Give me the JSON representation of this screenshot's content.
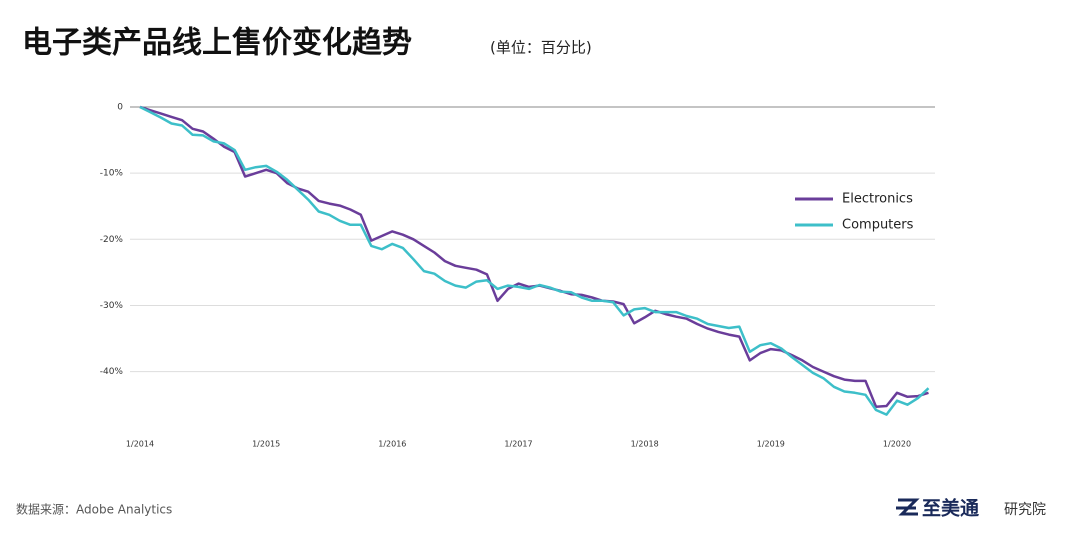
{
  "chart_data": {
    "type": "line",
    "title": "电子类产品线上售价变化趋势",
    "subtitle": "(单位：百分比)",
    "x": [
      "1/2014",
      "2/2014",
      "3/2014",
      "4/2014",
      "5/2014",
      "6/2014",
      "7/2014",
      "8/2014",
      "9/2014",
      "10/2014",
      "11/2014",
      "12/2014",
      "1/2015",
      "2/2015",
      "3/2015",
      "4/2015",
      "5/2015",
      "6/2015",
      "7/2015",
      "8/2015",
      "9/2015",
      "10/2015",
      "11/2015",
      "12/2015",
      "1/2016",
      "2/2016",
      "3/2016",
      "4/2016",
      "5/2016",
      "6/2016",
      "7/2016",
      "8/2016",
      "9/2016",
      "10/2016",
      "11/2016",
      "12/2016",
      "1/2017",
      "2/2017",
      "3/2017",
      "4/2017",
      "5/2017",
      "6/2017",
      "7/2017",
      "8/2017",
      "9/2017",
      "10/2017",
      "11/2017",
      "12/2017",
      "1/2018",
      "2/2018",
      "3/2018",
      "4/2018",
      "5/2018",
      "6/2018",
      "7/2018",
      "8/2018",
      "9/2018",
      "10/2018",
      "11/2018",
      "12/2018",
      "1/2019",
      "2/2019",
      "3/2019",
      "4/2019",
      "5/2019",
      "6/2019",
      "7/2019",
      "8/2019",
      "9/2019",
      "10/2019",
      "11/2019",
      "12/2019",
      "1/2020",
      "2/2020",
      "3/2020",
      "4/2020"
    ],
    "xticks": [
      "1/2014",
      "1/2015",
      "1/2016",
      "1/2017",
      "1/2018",
      "1/2019",
      "1/2020"
    ],
    "ylim": [
      -52,
      0
    ],
    "yticks": [
      0,
      {
        "value": -10,
        "label": "-10%"
      },
      {
        "value": -20,
        "label": "-20%"
      },
      {
        "value": -30,
        "label": "-30%"
      },
      {
        "value": -40,
        "label": "-40%"
      }
    ],
    "grid": true,
    "legend": "right",
    "series": [
      {
        "name": "Electronics",
        "color": "#6a3d9a",
        "values": [
          0,
          -0.5,
          -1,
          -1.5,
          -2,
          -3.3,
          -3.7,
          -4.8,
          -6,
          -6.8,
          -10.5,
          -10,
          -9.5,
          -10,
          -11.5,
          -12.3,
          -12.8,
          -14.2,
          -14.6,
          -14.9,
          -15.5,
          -16.3,
          -20.2,
          -19.5,
          -18.8,
          -19.3,
          -20,
          -21,
          -22,
          -23.3,
          -24,
          -24.3,
          -24.6,
          -25.3,
          -29.3,
          -27.5,
          -26.7,
          -27.2,
          -27,
          -27.4,
          -27.8,
          -28.3,
          -28.4,
          -28.8,
          -29.3,
          -29.4,
          -29.8,
          -32.7,
          -31.8,
          -30.8,
          -31.3,
          -31.7,
          -32,
          -32.8,
          -33.5,
          -34,
          -34.4,
          -34.7,
          -38.3,
          -37.2,
          -36.6,
          -36.8,
          -37.5,
          -38.3,
          -39.3,
          -40,
          -40.7,
          -41.2,
          -41.4,
          -41.4,
          -45.3,
          -45.2,
          -43.2,
          -43.8,
          -43.7,
          -43.2
        ]
      },
      {
        "name": "Computers",
        "color": "#3dbfc9",
        "values": [
          0,
          -0.8,
          -1.6,
          -2.5,
          -2.8,
          -4.2,
          -4.3,
          -5.2,
          -5.5,
          -6.5,
          -9.5,
          -9.1,
          -8.9,
          -9.8,
          -11,
          -12.5,
          -14,
          -15.8,
          -16.3,
          -17.2,
          -17.8,
          -17.8,
          -21,
          -21.5,
          -20.7,
          -21.3,
          -23,
          -24.8,
          -25.2,
          -26.3,
          -27,
          -27.3,
          -26.4,
          -26.2,
          -27.5,
          -27,
          -27.2,
          -27.5,
          -26.9,
          -27.3,
          -27.9,
          -28,
          -28.8,
          -29.3,
          -29.3,
          -29.5,
          -31.5,
          -30.6,
          -30.4,
          -31,
          -31,
          -31,
          -31.6,
          -32,
          -32.8,
          -33.1,
          -33.4,
          -33.2,
          -37,
          -36,
          -35.7,
          -36.5,
          -37.8,
          -39,
          -40.2,
          -41,
          -42.3,
          -43,
          -43.2,
          -43.5,
          -45.8,
          -46.5,
          -44.4,
          -45,
          -44,
          -42.5
        ]
      }
    ]
  },
  "source": "数据来源：Adobe Analytics",
  "logo": {
    "name": "至美通",
    "suffix": "研究院"
  }
}
